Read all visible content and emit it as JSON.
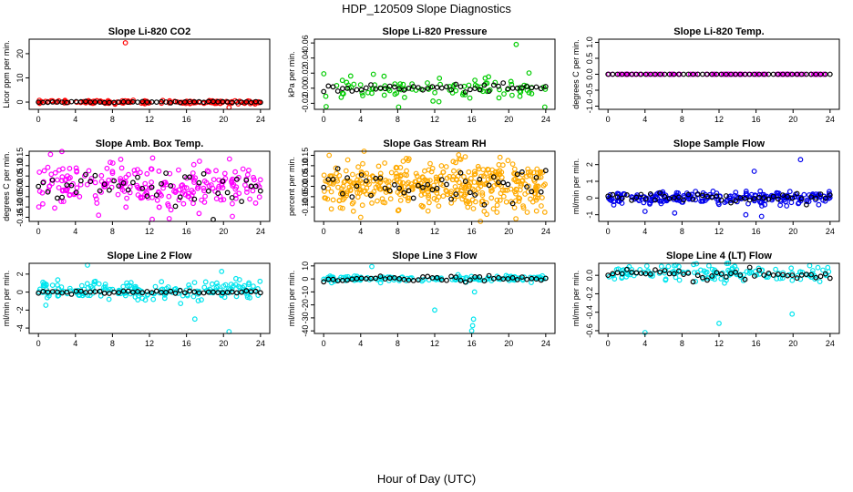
{
  "page": {
    "title": "HDP_120509  Slope Diagnostics",
    "xlabel": "Hour of Day (UTC)"
  },
  "chart_data": [
    {
      "type": "scatter",
      "title": "Slope Li-820 CO2",
      "ylabel": "Licor ppm per min.",
      "xlim": [
        -1,
        25
      ],
      "ylim": [
        -3,
        26
      ],
      "xticks": [
        0,
        4,
        8,
        12,
        16,
        20,
        24
      ],
      "yticks": [
        0,
        10,
        20
      ],
      "ytick_labels": [
        "0",
        "10",
        "20"
      ],
      "series": [
        {
          "name": "raw",
          "color": "#ff0000",
          "center": 0,
          "spread": 0.35,
          "density": 3,
          "outliers": [
            [
              9.4,
              24.5
            ],
            [
              20.6,
              -2.2
            ]
          ]
        },
        {
          "name": "mean",
          "color": "#000000",
          "center": 0,
          "spread": 0.15
        }
      ]
    },
    {
      "type": "scatter",
      "title": "Slope Li-820 Pressure",
      "ylabel": "kPa per min.",
      "xlim": [
        -1,
        25
      ],
      "ylim": [
        -0.028,
        0.065
      ],
      "xticks": [
        0,
        4,
        8,
        12,
        16,
        20,
        24
      ],
      "yticks": [
        -0.02,
        0,
        0.02,
        0.04,
        0.06
      ],
      "ytick_labels": [
        "-0.02",
        "0.00",
        "0.02",
        "0.04",
        "0.06"
      ],
      "series": [
        {
          "name": "raw",
          "color": "#00cc00",
          "center": 0,
          "spread": 0.007,
          "density": 2,
          "outliers": [
            [
              8.1,
              -0.025
            ],
            [
              20.8,
              0.058
            ],
            [
              23.9,
              -0.025
            ],
            [
              1.9,
              -0.012
            ],
            [
              15.8,
              -0.013
            ]
          ]
        },
        {
          "name": "mean",
          "color": "#000000",
          "center": 0,
          "spread": 0.0025
        }
      ]
    },
    {
      "type": "scatter",
      "title": "Slope Li-820 Temp.",
      "ylabel": "degrees C per min.",
      "xlim": [
        -1,
        25
      ],
      "ylim": [
        -1.1,
        1.1
      ],
      "xticks": [
        0,
        4,
        8,
        12,
        16,
        20,
        24
      ],
      "yticks": [
        -1,
        -0.5,
        0,
        0.5,
        1
      ],
      "ytick_labels": [
        "-1.0",
        "-0.5",
        "0.0",
        "0.5",
        "1.0"
      ],
      "series": [
        {
          "name": "raw",
          "color": "#ff00ff",
          "center": 0,
          "spread": 0.0,
          "density": 2,
          "outliers": []
        },
        {
          "name": "mean",
          "color": "#000000",
          "center": 0,
          "spread": 0.0
        }
      ]
    },
    {
      "type": "scatter",
      "title": "Slope Amb. Box Temp.",
      "ylabel": "degrees C per min.",
      "xlim": [
        -1,
        25
      ],
      "ylim": [
        -0.17,
        0.17
      ],
      "xticks": [
        0,
        4,
        8,
        12,
        16,
        20,
        24
      ],
      "yticks": [
        -0.15,
        -0.1,
        -0.05,
        0,
        0.05,
        0.1,
        0.15
      ],
      "ytick_labels": [
        "-0.15",
        "-0.10",
        "-0.05",
        "0.00",
        "0.05",
        "0.10",
        "0.15"
      ],
      "series": [
        {
          "name": "raw",
          "color": "#ff00ff",
          "center": 0,
          "spread": 0.055,
          "density": 5,
          "outliers": [
            [
              1.3,
              0.155
            ],
            [
              12.3,
              -0.16
            ],
            [
              6.5,
              -0.14
            ]
          ]
        },
        {
          "name": "mean",
          "color": "#000000",
          "center": 0,
          "spread": 0.04
        }
      ]
    },
    {
      "type": "scatter",
      "title": "Slope Gas Stream RH",
      "ylabel": "percent per min.",
      "xlim": [
        -1,
        25
      ],
      "ylim": [
        -0.17,
        0.17
      ],
      "xticks": [
        0,
        4,
        8,
        12,
        16,
        20,
        24
      ],
      "yticks": [
        -0.1,
        -0.05,
        0,
        0.05,
        0.1,
        0.15
      ],
      "ytick_labels": [
        "-0.10",
        "-0.05",
        "0.00",
        "0.05",
        "0.10",
        "0.15"
      ],
      "series": [
        {
          "name": "raw",
          "color": "#ffaa00",
          "center": 0,
          "spread": 0.06,
          "density": 9,
          "outliers": [
            [
              0.6,
              0.15
            ],
            [
              4.0,
              -0.15
            ],
            [
              14.0,
              0.12
            ]
          ]
        },
        {
          "name": "mean",
          "color": "#000000",
          "center": 0,
          "spread": 0.04
        }
      ]
    },
    {
      "type": "scatter",
      "title": "Slope Sample Flow",
      "ylabel": "ml/min per min.",
      "xlim": [
        -1,
        25
      ],
      "ylim": [
        -1.4,
        2.8
      ],
      "xticks": [
        0,
        4,
        8,
        12,
        16,
        20,
        24
      ],
      "yticks": [
        -1,
        0,
        1,
        2
      ],
      "ytick_labels": [
        "-1",
        "0",
        "1",
        "2"
      ],
      "series": [
        {
          "name": "raw",
          "color": "#0000ee",
          "center": 0,
          "spread": 0.18,
          "density": 5,
          "outliers": [
            [
              20.8,
              2.3
            ],
            [
              15.8,
              1.6
            ],
            [
              4.0,
              -0.8
            ],
            [
              16.6,
              -1.1
            ],
            [
              14.9,
              -1.0
            ],
            [
              7.2,
              -0.9
            ]
          ]
        },
        {
          "name": "mean",
          "color": "#000000",
          "center": 0.05,
          "spread": 0.12
        }
      ]
    },
    {
      "type": "scatter",
      "title": "Slope Line 2 Flow",
      "ylabel": "ml/min per min.",
      "xlim": [
        -1,
        25
      ],
      "ylim": [
        -4.6,
        3.2
      ],
      "xticks": [
        0,
        4,
        8,
        12,
        16,
        20,
        24
      ],
      "yticks": [
        -4,
        -2,
        0,
        2
      ],
      "ytick_labels": [
        "-4",
        "-2",
        "0",
        "2"
      ],
      "series": [
        {
          "name": "raw",
          "color": "#00e5ee",
          "center": 0.2,
          "spread": 0.5,
          "density": 4,
          "outliers": [
            [
              5.3,
              3.0
            ],
            [
              20.6,
              -4.4
            ],
            [
              16.9,
              -3.0
            ],
            [
              19.8,
              2.3
            ]
          ]
        },
        {
          "name": "mean",
          "color": "#000000",
          "center": 0,
          "spread": 0.1
        }
      ]
    },
    {
      "type": "scatter",
      "title": "Slope Line 3 Flow",
      "ylabel": "ml/min per min.",
      "xlim": [
        -1,
        25
      ],
      "ylim": [
        -42,
        12
      ],
      "xticks": [
        0,
        4,
        8,
        12,
        16,
        20,
        24
      ],
      "yticks": [
        -40,
        -30,
        -20,
        -10,
        0,
        10
      ],
      "ytick_labels": [
        "-40",
        "-30",
        "-20",
        "-10",
        "0",
        "10"
      ],
      "series": [
        {
          "name": "raw",
          "color": "#00e5ee",
          "center": 0,
          "spread": 1.2,
          "density": 3,
          "outliers": [
            [
              16.0,
              -40
            ],
            [
              16.1,
              -36
            ],
            [
              16.2,
              -31
            ],
            [
              12.0,
              -24
            ],
            [
              16.3,
              -10
            ],
            [
              5.2,
              9.5
            ]
          ]
        },
        {
          "name": "mean",
          "color": "#000000",
          "center": 0,
          "spread": 1.0
        }
      ]
    },
    {
      "type": "scatter",
      "title": "Slope Line 4 (LT) Flow",
      "ylabel": "ml/min per min.",
      "xlim": [
        -1,
        25
      ],
      "ylim": [
        -0.63,
        0.13
      ],
      "xticks": [
        0,
        4,
        8,
        12,
        16,
        20,
        24
      ],
      "yticks": [
        -0.6,
        -0.4,
        -0.2,
        0
      ],
      "ytick_labels": [
        "-0.6",
        "-0.4",
        "-0.2",
        "0.0"
      ],
      "series": [
        {
          "name": "raw",
          "color": "#00e5ee",
          "center": 0.02,
          "spread": 0.05,
          "density": 3,
          "outliers": [
            [
              4.0,
              -0.62
            ],
            [
              12.0,
              -0.52
            ],
            [
              19.9,
              -0.42
            ],
            [
              4.2,
              0.1
            ]
          ]
        },
        {
          "name": "mean",
          "color": "#000000",
          "center": 0,
          "spread": 0.03
        }
      ]
    }
  ]
}
